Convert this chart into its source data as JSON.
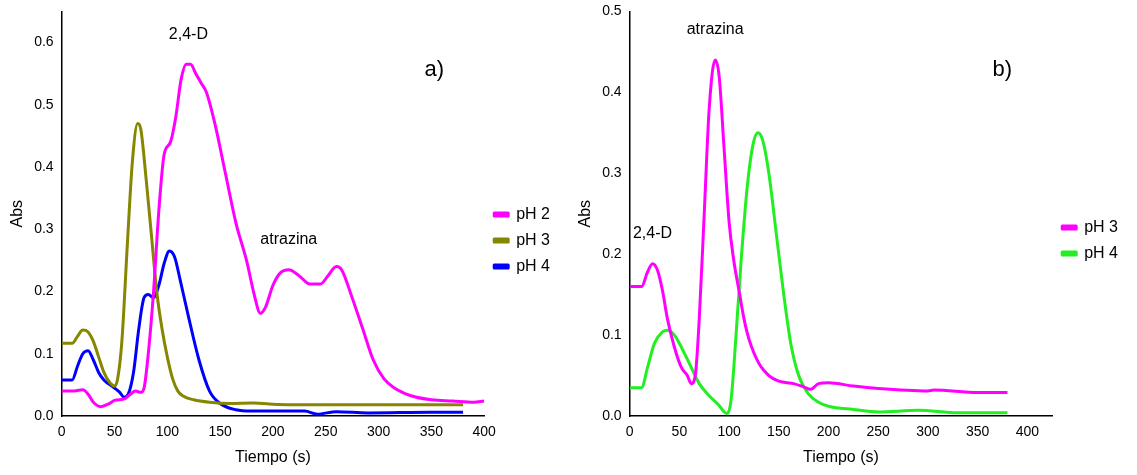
{
  "chart_data": [
    {
      "type": "line",
      "xlabel": "Tiempo (s)",
      "ylabel": "Abs",
      "xlim": [
        0,
        400
      ],
      "ylim": [
        0,
        0.65
      ],
      "xticks": [
        0,
        50,
        100,
        150,
        200,
        250,
        300,
        350,
        400
      ],
      "yticks": [
        {
          "value": 0,
          "label": "0.0"
        },
        0.1,
        0.2,
        0.3,
        0.4,
        0.5,
        0.6
      ],
      "grid": false,
      "legend": "right",
      "marker": "none",
      "line_style": "solid",
      "annotations": [
        "a)",
        {
          "text": "2,4-D",
          "x": 120,
          "y": 0.565
        },
        {
          "text": "atrazina",
          "x": 215,
          "y": 0.235
        }
      ],
      "series": [
        {
          "name": "pH 2",
          "color": "#ff00ff",
          "x": [
            0,
            10,
            20,
            25,
            30,
            37,
            45,
            50,
            60,
            65,
            70,
            75,
            78,
            82,
            87,
            92,
            97,
            103,
            108,
            113,
            118,
            122,
            127,
            132,
            137,
            145,
            155,
            165,
            175,
            183,
            188,
            193,
            200,
            207,
            215,
            225,
            235,
            245,
            252,
            260,
            265,
            275,
            285,
            295,
            305,
            315,
            330,
            350,
            370,
            390,
            400
          ],
          "values": [
            0.04,
            0.04,
            0.042,
            0.035,
            0.022,
            0.015,
            0.02,
            0.025,
            0.028,
            0.035,
            0.04,
            0.038,
            0.045,
            0.1,
            0.2,
            0.33,
            0.42,
            0.44,
            0.48,
            0.54,
            0.565,
            0.565,
            0.55,
            0.535,
            0.52,
            0.47,
            0.39,
            0.31,
            0.25,
            0.19,
            0.165,
            0.175,
            0.21,
            0.23,
            0.235,
            0.225,
            0.212,
            0.212,
            0.225,
            0.24,
            0.235,
            0.19,
            0.14,
            0.09,
            0.06,
            0.045,
            0.033,
            0.026,
            0.024,
            0.022,
            0.024
          ]
        },
        {
          "name": "pH 3",
          "color": "#868600",
          "x": [
            0,
            10,
            15,
            20,
            25,
            30,
            35,
            40,
            45,
            50,
            53,
            57,
            62,
            67,
            72,
            75,
            80,
            85,
            90,
            95,
            100,
            105,
            110,
            115,
            125,
            140,
            160,
            180,
            200,
            250,
            300,
            350,
            380
          ],
          "values": [
            0.117,
            0.117,
            0.128,
            0.138,
            0.135,
            0.12,
            0.095,
            0.07,
            0.055,
            0.048,
            0.06,
            0.12,
            0.27,
            0.41,
            0.47,
            0.46,
            0.38,
            0.29,
            0.2,
            0.14,
            0.095,
            0.06,
            0.04,
            0.032,
            0.026,
            0.022,
            0.02,
            0.021,
            0.019,
            0.018,
            0.018,
            0.018,
            0.018
          ]
        },
        {
          "name": "pH 4",
          "color": "#0000ff",
          "x": [
            0,
            10,
            15,
            20,
            25,
            30,
            35,
            40,
            50,
            55,
            59,
            63,
            68,
            73,
            78,
            82,
            87,
            92,
            97,
            102,
            107,
            112,
            120,
            130,
            140,
            150,
            165,
            180,
            200,
            230,
            242,
            260,
            290,
            350,
            380
          ],
          "values": [
            0.058,
            0.058,
            0.08,
            0.1,
            0.105,
            0.09,
            0.07,
            0.058,
            0.045,
            0.038,
            0.03,
            0.035,
            0.07,
            0.14,
            0.19,
            0.195,
            0.19,
            0.21,
            0.245,
            0.265,
            0.255,
            0.22,
            0.16,
            0.09,
            0.04,
            0.02,
            0.01,
            0.008,
            0.008,
            0.008,
            0.003,
            0.007,
            0.005,
            0.006,
            0.006
          ]
        }
      ]
    },
    {
      "type": "line",
      "xlabel": "Tiempo (s)",
      "ylabel": "Abs",
      "xlim": [
        0,
        425
      ],
      "ylim": [
        0,
        0.5
      ],
      "xticks": [
        0,
        50,
        100,
        150,
        200,
        250,
        300,
        350,
        400
      ],
      "yticks": [
        {
          "value": 0,
          "label": "0.0"
        },
        0.1,
        0.2,
        0.3,
        0.4,
        0.5
      ],
      "grid": false,
      "legend": "right",
      "marker": "none",
      "line_style": "solid",
      "annotations": [
        "b)",
        {
          "text": "2,4-D",
          "x": 23,
          "y": 0.188
        },
        {
          "text": "atrazina",
          "x": 86,
          "y": 0.44
        }
      ],
      "series": [
        {
          "name": "pH 3",
          "color": "#ff00ff",
          "x": [
            0,
            12,
            18,
            23,
            28,
            33,
            38,
            45,
            52,
            58,
            62,
            66,
            70,
            75,
            80,
            86,
            90,
            95,
            100,
            105,
            110,
            115,
            120,
            130,
            140,
            150,
            165,
            175,
            182,
            190,
            200,
            225,
            250,
            300,
            306,
            350,
            380
          ],
          "values": [
            0.16,
            0.16,
            0.178,
            0.188,
            0.18,
            0.155,
            0.12,
            0.085,
            0.06,
            0.05,
            0.04,
            0.05,
            0.12,
            0.25,
            0.38,
            0.44,
            0.42,
            0.33,
            0.24,
            0.19,
            0.155,
            0.12,
            0.095,
            0.065,
            0.05,
            0.043,
            0.04,
            0.036,
            0.033,
            0.04,
            0.041,
            0.037,
            0.034,
            0.031,
            0.032,
            0.029,
            0.029
          ]
        },
        {
          "name": "pH 4",
          "color": "#22ee22",
          "x": [
            0,
            12,
            18,
            25,
            33,
            38,
            45,
            52,
            60,
            70,
            80,
            90,
            95,
            98,
            102,
            107,
            112,
            118,
            124,
            129,
            134,
            140,
            148,
            155,
            162,
            170,
            180,
            190,
            200,
            225,
            250,
            290,
            330,
            380
          ],
          "values": [
            0.035,
            0.035,
            0.06,
            0.09,
            0.104,
            0.106,
            0.1,
            0.085,
            0.065,
            0.04,
            0.025,
            0.013,
            0.005,
            0.003,
            0.02,
            0.1,
            0.19,
            0.28,
            0.335,
            0.35,
            0.34,
            0.3,
            0.22,
            0.15,
            0.09,
            0.05,
            0.027,
            0.017,
            0.012,
            0.008,
            0.005,
            0.007,
            0.004,
            0.004
          ]
        }
      ]
    }
  ]
}
